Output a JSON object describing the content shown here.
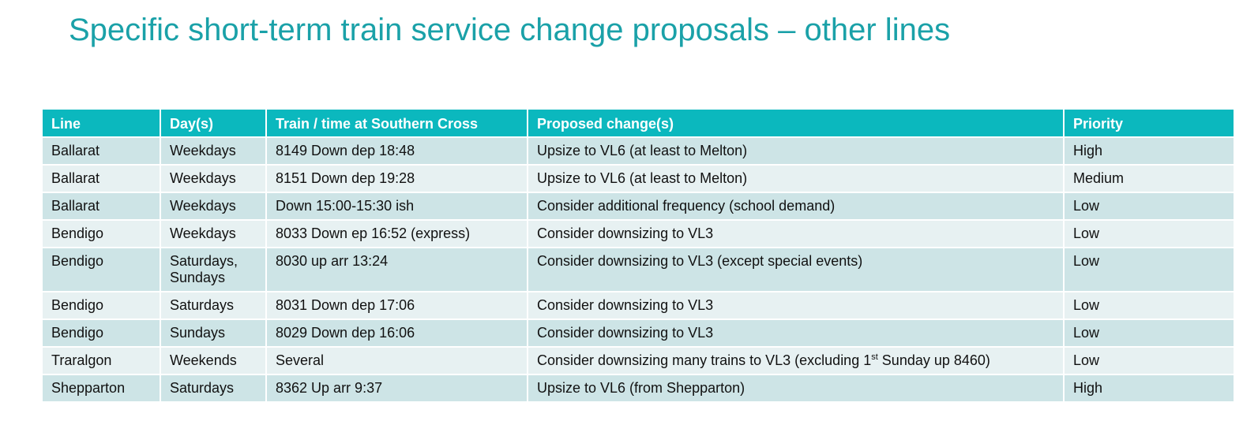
{
  "title": "Specific short-term train service change proposals – other lines",
  "table": {
    "headers": [
      "Line",
      "Day(s)",
      "Train / time at Southern Cross",
      "Proposed change(s)",
      "Priority"
    ],
    "rows": [
      {
        "line": "Ballarat",
        "days": "Weekdays",
        "days2": "",
        "train": "8149 Down dep 18:48",
        "change": "Upsize to VL6 (at least to Melton)",
        "change_sup": "",
        "change_after": "",
        "priority": "High"
      },
      {
        "line": "Ballarat",
        "days": "Weekdays",
        "days2": "",
        "train": "8151 Down dep 19:28",
        "change": "Upsize to VL6 (at least to Melton)",
        "change_sup": "",
        "change_after": "",
        "priority": "Medium"
      },
      {
        "line": "Ballarat",
        "days": "Weekdays",
        "days2": "",
        "train": "Down 15:00-15:30 ish",
        "change": "Consider additional frequency (school demand)",
        "change_sup": "",
        "change_after": "",
        "priority": "Low"
      },
      {
        "line": "Bendigo",
        "days": "Weekdays",
        "days2": "",
        "train": "8033 Down ep 16:52 (express)",
        "change": "Consider downsizing to VL3",
        "change_sup": "",
        "change_after": "",
        "priority": "Low"
      },
      {
        "line": "Bendigo",
        "days": "Saturdays,",
        "days2": "Sundays",
        "train": "8030 up arr 13:24",
        "change": "Consider downsizing to VL3 (except special events)",
        "change_sup": "",
        "change_after": "",
        "priority": "Low"
      },
      {
        "line": "Bendigo",
        "days": "Saturdays",
        "days2": "",
        "train": "8031 Down dep 17:06",
        "change": "Consider downsizing to VL3",
        "change_sup": "",
        "change_after": "",
        "priority": "Low"
      },
      {
        "line": "Bendigo",
        "days": "Sundays",
        "days2": "",
        "train": "8029 Down dep 16:06",
        "change": "Consider downsizing to VL3",
        "change_sup": "",
        "change_after": "",
        "priority": "Low"
      },
      {
        "line": "Traralgon",
        "days": "Weekends",
        "days2": "",
        "train": "Several",
        "change": "Consider downsizing many trains to VL3 (excluding 1",
        "change_sup": "st",
        "change_after": " Sunday up 8460)",
        "priority": "Low"
      },
      {
        "line": "Shepparton",
        "days": "Saturdays",
        "days2": "",
        "train": "8362 Up arr 9:37",
        "change": "Upsize to VL6 (from Shepparton)",
        "change_sup": "",
        "change_after": "",
        "priority": "High"
      }
    ]
  }
}
